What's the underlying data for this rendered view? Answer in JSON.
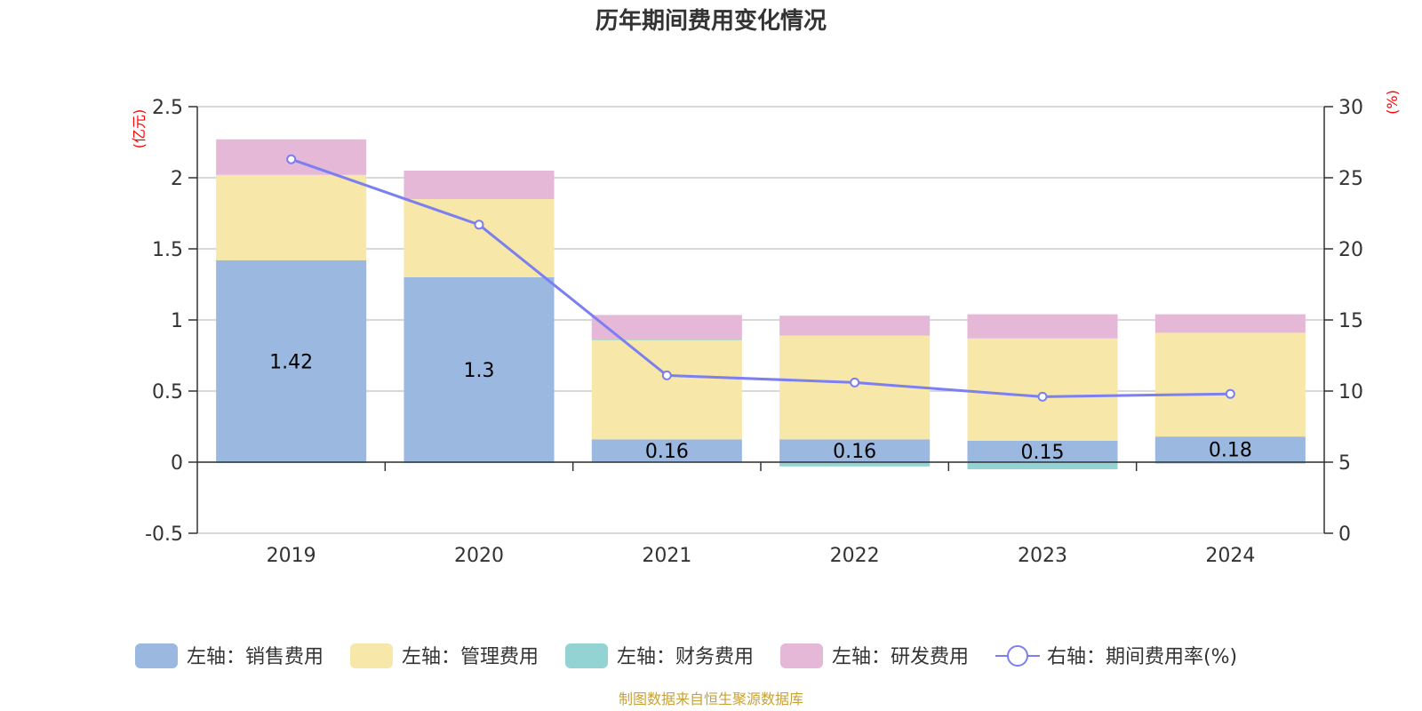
{
  "chart_data": {
    "type": "bar",
    "title": "历年期间费用变化情况",
    "categories": [
      "2019",
      "2020",
      "2021",
      "2022",
      "2023",
      "2024"
    ],
    "y_left": {
      "unit": "(亿元)",
      "range": [
        -0.5,
        2.5
      ],
      "ticks": [
        "-0.5",
        "0",
        "0.5",
        "1",
        "1.5",
        "2",
        "2.5"
      ]
    },
    "y_right": {
      "unit": "(%)",
      "range": [
        0,
        30
      ],
      "ticks": [
        "0",
        "5",
        "10",
        "15",
        "20",
        "25",
        "30"
      ]
    },
    "stacked_series": [
      {
        "name": "左轴：销售费用",
        "color": "#9bb8e1",
        "values": [
          1.42,
          1.3,
          0.16,
          0.16,
          0.15,
          0.18
        ],
        "data_labels": [
          "1.42",
          "1.3",
          "0.16",
          "0.16",
          "0.15",
          "0.18"
        ]
      },
      {
        "name": "左轴：管理费用",
        "color": "#f7e7a8",
        "values": [
          0.6,
          0.55,
          0.7,
          0.73,
          0.72,
          0.73
        ]
      },
      {
        "name": "左轴：财务费用",
        "color": "#93d3d4",
        "values": [
          -0.003,
          -0.002,
          0.005,
          -0.03,
          -0.05,
          -0.01
        ]
      },
      {
        "name": "左轴：研发费用",
        "color": "#e6b8d8",
        "values": [
          0.25,
          0.2,
          0.17,
          0.14,
          0.17,
          0.13
        ]
      }
    ],
    "line_series": {
      "name": "右轴：期间费用率(%)",
      "color": "#7b7ff0",
      "values": [
        26.3,
        21.7,
        11.1,
        10.6,
        9.6,
        9.8
      ]
    },
    "grid": true,
    "legend_position": "bottom"
  },
  "source_note": "制图数据来自恒生聚源数据库"
}
